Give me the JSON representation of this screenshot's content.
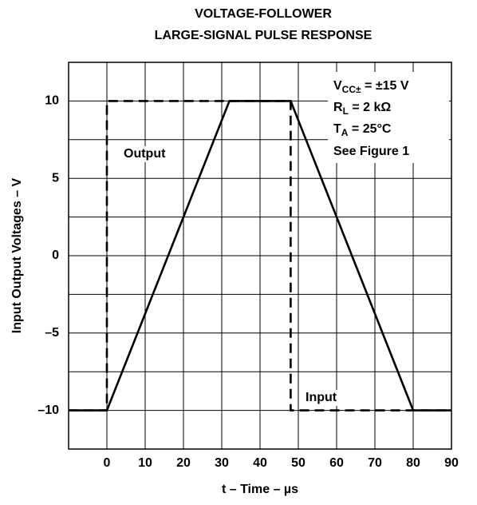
{
  "chart_data": {
    "type": "line",
    "title": [
      "VOLTAGE-FOLLOWER",
      "LARGE-SIGNAL PULSE RESPONSE"
    ],
    "x_label": "t – Time – µs",
    "y_label": "Input Output Voltages – V",
    "xlim": [
      -10,
      90
    ],
    "ylim": [
      -12.5,
      12.5
    ],
    "xticks": [
      0,
      10,
      20,
      30,
      40,
      50,
      60,
      70,
      80,
      90
    ],
    "yticks": [
      {
        "value": -10,
        "label": "–10"
      },
      {
        "value": -5,
        "label": "–5"
      },
      0,
      5,
      10
    ],
    "grid": true,
    "series": [
      {
        "name": "Input",
        "color": "#000000",
        "dashed": true,
        "x": [
          -10,
          0,
          0,
          48,
          48,
          90
        ],
        "values": [
          -10,
          -10,
          10,
          10,
          -10,
          -10
        ]
      },
      {
        "name": "Output",
        "color": "#000000",
        "dashed": false,
        "x": [
          -10,
          0,
          32,
          48,
          80,
          90
        ],
        "values": [
          -10,
          -10,
          10,
          10,
          -10,
          -10
        ]
      }
    ],
    "annotations": [
      {
        "text": "V",
        "sub": "CC±",
        "rest": " = ±15 V"
      },
      {
        "text": "R",
        "sub": "L",
        "rest": " = 2 kΩ"
      },
      {
        "text": "T",
        "sub": "A",
        "rest": " = 25°C"
      },
      {
        "text": "See Figure 1"
      }
    ]
  }
}
